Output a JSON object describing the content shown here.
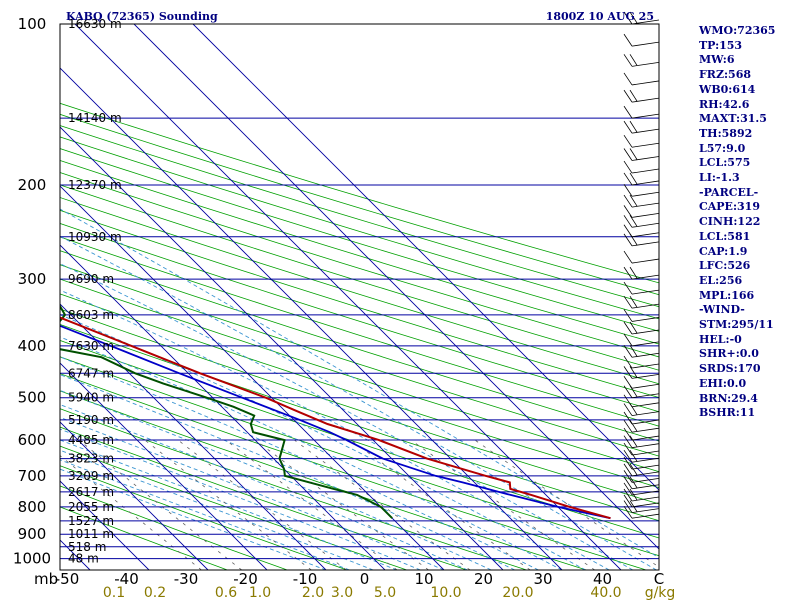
{
  "header": {
    "station": "KABQ (72365) Sounding",
    "time": "1800Z 10 AUG 25"
  },
  "indices": [
    "WMO:72365",
    "TP:153",
    "MW:6",
    "FRZ:568",
    "WB0:614",
    "RH:42.6",
    "MAXT:31.5",
    "TH:5892",
    "L57:9.0",
    "LCL:575",
    "LI:-1.3",
    "-PARCEL-",
    "CAPE:319",
    "CINH:122",
    "LCL:581",
    "CAP:1.9",
    "LFC:526",
    "EL:256",
    "MPL:166",
    "-WIND-",
    "STM:295/11",
    "HEL:-0",
    "SHR+:0.0",
    "SRDS:170",
    "EHI:0.0",
    "BRN:29.4",
    "BSHR:11"
  ],
  "colors": {
    "isobar": "#0000a0",
    "isotherm": "#0000a0",
    "dry_adiabat": "#00a000",
    "moist_adiabat": "#3c96d2",
    "mixing_ratio": "#606060",
    "temperature": "#b40000",
    "dewpoint": "#005000",
    "parcel": "#0000c8",
    "header_text": "#000080",
    "mixing_label": "#8a7a00"
  },
  "chart_data": {
    "type": "skew-t log-p",
    "pressure_unit_label": "mb",
    "pressure_levels": [
      100,
      200,
      300,
      400,
      500,
      600,
      700,
      800,
      900,
      1000
    ],
    "pressure_labels": [
      "100",
      "200",
      "300",
      "400",
      "500",
      "600",
      "700",
      "800",
      "900",
      "1000"
    ],
    "height_levels": [
      {
        "p": 100,
        "label": "16630 m"
      },
      {
        "p": 150,
        "label": "14140 m"
      },
      {
        "p": 200,
        "label": "12370 m"
      },
      {
        "p": 250,
        "label": "10930 m"
      },
      {
        "p": 300,
        "label": "9690 m"
      },
      {
        "p": 350,
        "label": "8603 m"
      },
      {
        "p": 400,
        "label": "7630 m"
      },
      {
        "p": 450,
        "label": "6747 m"
      },
      {
        "p": 500,
        "label": "5940 m"
      },
      {
        "p": 550,
        "label": "5190 m"
      },
      {
        "p": 600,
        "label": "4485 m"
      },
      {
        "p": 650,
        "label": "3823 m"
      },
      {
        "p": 700,
        "label": "3209 m"
      },
      {
        "p": 750,
        "label": "2617 m"
      },
      {
        "p": 800,
        "label": "2055 m"
      },
      {
        "p": 850,
        "label": "1527 m"
      },
      {
        "p": 900,
        "label": "1011 m"
      },
      {
        "p": 950,
        "label": "518 m"
      },
      {
        "p": 1000,
        "label": "48 m"
      }
    ],
    "temperature_ticks": [
      -50,
      -40,
      -30,
      -20,
      -10,
      0,
      10,
      20,
      30,
      40
    ],
    "temperature_tick_labels": [
      "-50",
      "-40",
      "-30",
      "-20",
      "-10",
      "0",
      "10",
      "20",
      "30",
      "40"
    ],
    "temperature_unit_label": "C",
    "mixing_ratio_labels": [
      "0.1",
      "0.2",
      "0.6",
      "1.0",
      "2.0",
      "3.0",
      "5.0",
      "10.0",
      "20.0",
      "40.0"
    ],
    "mixing_ratio_unit": "g/kg",
    "temperature_profile": [
      [
        840,
        37
      ],
      [
        800,
        32
      ],
      [
        760,
        27.5
      ],
      [
        740,
        25
      ],
      [
        720,
        26
      ],
      [
        700,
        23
      ],
      [
        650,
        16
      ],
      [
        600,
        11
      ],
      [
        560,
        5
      ],
      [
        530,
        2
      ],
      [
        500,
        -1
      ],
      [
        450,
        -8
      ],
      [
        400,
        -15
      ],
      [
        350,
        -23
      ],
      [
        300,
        -33
      ],
      [
        250,
        -41
      ],
      [
        220,
        -48
      ],
      [
        200,
        -55
      ],
      [
        180,
        -60
      ],
      [
        160,
        -64
      ],
      [
        150,
        -66
      ],
      [
        140,
        -62
      ],
      [
        130,
        -55
      ],
      [
        120,
        -50
      ],
      [
        110,
        -48
      ],
      [
        100,
        -44
      ]
    ],
    "dewpoint_profile": [
      [
        840,
        0
      ],
      [
        800,
        0
      ],
      [
        760,
        -2
      ],
      [
        740,
        -5
      ],
      [
        700,
        -11
      ],
      [
        680,
        -10
      ],
      [
        650,
        -9
      ],
      [
        600,
        -5
      ],
      [
        580,
        -9
      ],
      [
        560,
        -8
      ],
      [
        540,
        -6
      ],
      [
        520,
        -8
      ],
      [
        500,
        -11
      ],
      [
        470,
        -16
      ],
      [
        450,
        -19
      ],
      [
        420,
        -22
      ],
      [
        400,
        -30
      ],
      [
        380,
        -27
      ],
      [
        360,
        -23
      ],
      [
        350,
        -21
      ],
      [
        330,
        -20
      ],
      [
        320,
        -24
      ],
      [
        300,
        -30
      ],
      [
        280,
        -34
      ],
      [
        260,
        -38
      ],
      [
        240,
        -46
      ],
      [
        220,
        -52
      ],
      [
        200,
        -58
      ],
      [
        180,
        -64
      ],
      [
        160,
        -67
      ],
      [
        150,
        -66
      ],
      [
        145,
        -71
      ],
      [
        140,
        -73
      ],
      [
        130,
        -75
      ],
      [
        120,
        -74
      ],
      [
        110,
        -73
      ],
      [
        100,
        -73
      ]
    ],
    "parcel_profile": [
      [
        840,
        37
      ],
      [
        800,
        30
      ],
      [
        760,
        24
      ],
      [
        720,
        18
      ],
      [
        700,
        14.5
      ],
      [
        650,
        8.5
      ],
      [
        600,
        5.5
      ],
      [
        580,
        4
      ],
      [
        550,
        1
      ],
      [
        500,
        -5
      ],
      [
        450,
        -11.5
      ],
      [
        400,
        -18.5
      ],
      [
        350,
        -26.5
      ],
      [
        300,
        -36
      ],
      [
        280,
        -39
      ],
      [
        250,
        -46
      ],
      [
        220,
        -55
      ],
      [
        200,
        -61
      ],
      [
        180,
        -68
      ],
      [
        160,
        -75
      ],
      [
        140,
        -83
      ],
      [
        130,
        -87
      ]
    ],
    "wind_barbs_pressure": [
      100,
      110,
      120,
      130,
      140,
      150,
      160,
      170,
      180,
      190,
      200,
      210,
      220,
      230,
      240,
      250,
      260,
      280,
      300,
      320,
      340,
      360,
      380,
      400,
      420,
      440,
      460,
      480,
      500,
      520,
      540,
      560,
      580,
      600,
      620,
      640,
      660,
      680,
      700,
      720,
      740,
      760,
      780,
      800,
      820,
      840
    ]
  }
}
